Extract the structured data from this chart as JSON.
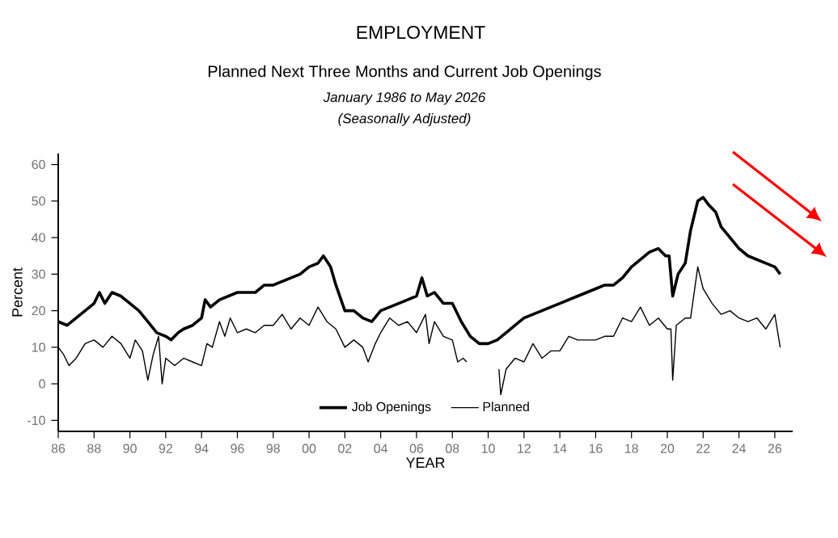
{
  "chart_data": {
    "type": "line",
    "title": "EMPLOYMENT",
    "subtitle": "Planned Next Three Months and Current Job Openings",
    "annotations": [
      "January 1986 to May 2026",
      "(Seasonally Adjusted)"
    ],
    "xlabel": "YEAR",
    "ylabel": "Percent",
    "xlim": [
      1986,
      2027
    ],
    "ylim": [
      -13,
      63
    ],
    "xticks": [
      {
        "value": 1986,
        "label": "86"
      },
      {
        "value": 1988,
        "label": "88"
      },
      {
        "value": 1990,
        "label": "90"
      },
      {
        "value": 1992,
        "label": "92"
      },
      {
        "value": 1994,
        "label": "94"
      },
      {
        "value": 1996,
        "label": "96"
      },
      {
        "value": 1998,
        "label": "98"
      },
      {
        "value": 2000,
        "label": "00"
      },
      {
        "value": 2002,
        "label": "02"
      },
      {
        "value": 2004,
        "label": "04"
      },
      {
        "value": 2006,
        "label": "06"
      },
      {
        "value": 2008,
        "label": "08"
      },
      {
        "value": 2010,
        "label": "10"
      },
      {
        "value": 2012,
        "label": "12"
      },
      {
        "value": 2014,
        "label": "14"
      },
      {
        "value": 2016,
        "label": "16"
      },
      {
        "value": 2018,
        "label": "18"
      },
      {
        "value": 2020,
        "label": "20"
      },
      {
        "value": 2022,
        "label": "22"
      },
      {
        "value": 2024,
        "label": "24"
      },
      {
        "value": 2026,
        "label": "26"
      }
    ],
    "yticks": [
      -10,
      0,
      10,
      20,
      30,
      40,
      50,
      60
    ],
    "grid": false,
    "legend": "bottom",
    "marker": "none",
    "series": [
      {
        "name": "Job Openings",
        "color": "#000000",
        "x": [
          1986.0,
          1986.5,
          1987.0,
          1987.5,
          1988.0,
          1988.3,
          1988.6,
          1989.0,
          1989.5,
          1990.0,
          1990.5,
          1991.0,
          1991.5,
          1992.0,
          1992.3,
          1992.7,
          1993.0,
          1993.5,
          1994.0,
          1994.2,
          1994.5,
          1995.0,
          1996.0,
          1997.0,
          1997.5,
          1998.0,
          1998.5,
          1999.0,
          1999.5,
          2000.0,
          2000.5,
          2000.8,
          2001.2,
          2001.5,
          2002.0,
          2002.5,
          2003.0,
          2003.5,
          2004.0,
          2004.5,
          2005.0,
          2005.5,
          2006.0,
          2006.3,
          2006.6,
          2007.0,
          2007.5,
          2008.0,
          2008.5,
          2009.0,
          2009.5,
          2010.0,
          2010.5,
          2011.0,
          2011.5,
          2012.0,
          2012.5,
          2013.0,
          2013.5,
          2014.0,
          2015.0,
          2015.5,
          2016.0,
          2016.5,
          2017.0,
          2017.5,
          2018.0,
          2018.5,
          2019.0,
          2019.5,
          2019.9,
          2020.1,
          2020.3,
          2020.6,
          2021.0,
          2021.3,
          2021.7,
          2022.0,
          2022.3,
          2022.7,
          2023.0,
          2023.5,
          2024.0,
          2024.5,
          2025.0,
          2025.5,
          2026.0,
          2026.3
        ],
        "values": [
          17,
          16,
          18,
          20,
          22,
          25,
          22,
          25,
          24,
          22,
          20,
          17,
          14,
          13,
          12,
          14,
          15,
          16,
          18,
          23,
          21,
          23,
          25,
          25,
          27,
          27,
          28,
          29,
          30,
          32,
          33,
          35,
          32,
          27,
          20,
          20,
          18,
          17,
          20,
          21,
          22,
          23,
          24,
          29,
          24,
          25,
          22,
          22,
          17,
          13,
          11,
          11,
          12,
          14,
          16,
          18,
          19,
          20,
          21,
          22,
          24,
          25,
          26,
          27,
          27,
          29,
          32,
          34,
          36,
          37,
          35,
          35,
          24,
          30,
          33,
          42,
          50,
          51,
          49,
          47,
          43,
          40,
          37,
          35,
          34,
          33,
          32,
          30
        ]
      },
      {
        "name": "Planned",
        "color": "#000000",
        "x": [
          1986.0,
          1986.3,
          1986.6,
          1987.0,
          1987.5,
          1988.0,
          1988.5,
          1989.0,
          1989.5,
          1990.0,
          1990.3,
          1990.7,
          1991.0,
          1991.3,
          1991.6,
          1991.8,
          1992.0,
          1992.5,
          1993.0,
          1993.5,
          1994.0,
          1994.3,
          1994.6,
          1995.0,
          1995.3,
          1995.6,
          1996.0,
          1996.5,
          1997.0,
          1997.5,
          1998.0,
          1998.5,
          1999.0,
          1999.5,
          2000.0,
          2000.5,
          2001.0,
          2001.5,
          2002.0,
          2002.5,
          2003.0,
          2003.3,
          2003.7,
          2004.0,
          2004.5,
          2005.0,
          2005.5,
          2006.0,
          2006.5,
          2006.7,
          2007.0,
          2007.5,
          2008.0,
          2008.3,
          2008.6,
          2008.8,
          2009.5,
          2010.6,
          2010.7,
          2011.0,
          2011.5,
          2012.0,
          2012.5,
          2013.0,
          2013.5,
          2014.0,
          2014.5,
          2015.0,
          2016.0,
          2016.5,
          2017.0,
          2017.5,
          2018.0,
          2018.5,
          2019.0,
          2019.5,
          2020.0,
          2020.2,
          2020.3,
          2020.5,
          2021.0,
          2021.3,
          2021.7,
          2022.0,
          2022.5,
          2023.0,
          2023.5,
          2024.0,
          2024.5,
          2025.0,
          2025.5,
          2026.0,
          2026.3
        ],
        "values": [
          10,
          8,
          5,
          7,
          11,
          12,
          10,
          13,
          11,
          7,
          12,
          9,
          1,
          8,
          13,
          0,
          7,
          5,
          7,
          6,
          5,
          11,
          10,
          17,
          13,
          18,
          14,
          15,
          14,
          16,
          16,
          19,
          15,
          18,
          16,
          21,
          17,
          15,
          10,
          12,
          10,
          6,
          11,
          14,
          18,
          16,
          17,
          14,
          19,
          11,
          17,
          13,
          12,
          6,
          7,
          6,
          null,
          4,
          -3,
          4,
          7,
          6,
          11,
          7,
          9,
          9,
          13,
          12,
          12,
          13,
          13,
          18,
          17,
          21,
          16,
          18,
          15,
          15,
          1,
          16,
          18,
          18,
          32,
          26,
          22,
          19,
          20,
          18,
          17,
          18,
          15,
          19,
          10
        ]
      }
    ]
  }
}
